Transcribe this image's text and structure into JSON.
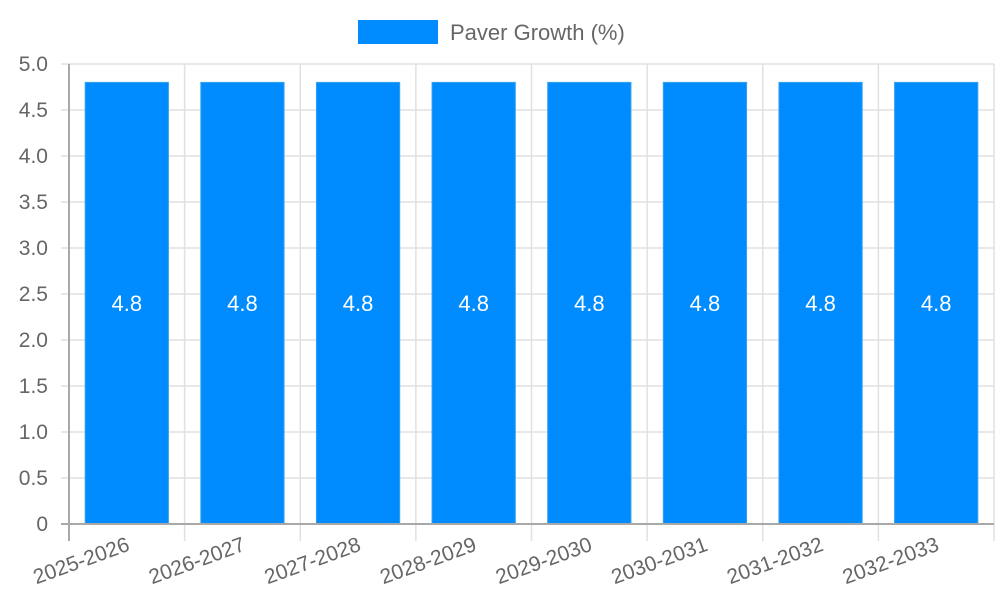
{
  "chart_data": {
    "type": "bar",
    "title": "",
    "xlabel": "",
    "ylabel": "",
    "categories": [
      "2025-2026",
      "2026-2027",
      "2027-2028",
      "2028-2029",
      "2029-2030",
      "2030-2031",
      "2031-2032",
      "2032-2033"
    ],
    "series": [
      {
        "name": "Paver Growth (%)",
        "values": [
          4.8,
          4.8,
          4.8,
          4.8,
          4.8,
          4.8,
          4.8,
          4.8
        ],
        "color": "#008CFF"
      }
    ],
    "data_labels": [
      "4.8",
      "4.8",
      "4.8",
      "4.8",
      "4.8",
      "4.8",
      "4.8",
      "4.8"
    ],
    "ylim": [
      0,
      5.0
    ],
    "yticks": [
      "0",
      "0.5",
      "1.0",
      "1.5",
      "2.0",
      "2.5",
      "3.0",
      "3.5",
      "4.0",
      "4.5",
      "5.0"
    ],
    "grid": true,
    "legend_position": "top"
  },
  "legend": {
    "label": "Paver Growth (%)",
    "swatch_color": "#008CFF"
  },
  "colors": {
    "bar": "#008CFF",
    "bar_border": "#36A2EB",
    "grid": "#E0E0E0",
    "axis": "#A8A8A8",
    "tick_text": "#666666",
    "data_label": "#FFFFFF"
  }
}
